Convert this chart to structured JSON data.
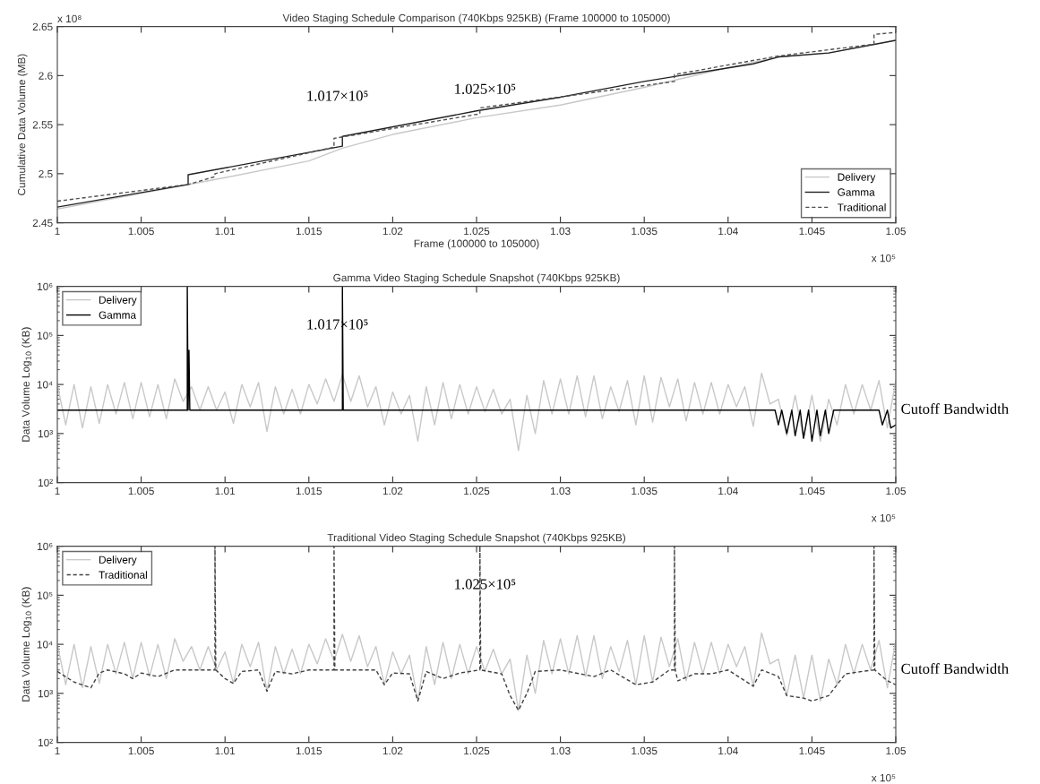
{
  "chart_data": [
    {
      "type": "line",
      "title": "Video Staging Schedule Comparison (740Kbps 925KB) (Frame 100000 to 105000)",
      "xlabel": "Frame (100000 to 105000)",
      "ylabel": "Cumulative Data Volume (MB)",
      "xlim": [
        1,
        1.05
      ],
      "xticks": [
        1,
        1.005,
        1.01,
        1.015,
        1.02,
        1.025,
        1.03,
        1.035,
        1.04,
        1.045,
        1.05
      ],
      "ylim": [
        2.45,
        2.65
      ],
      "yticks": [
        2.45,
        2.5,
        2.55,
        2.6,
        2.65
      ],
      "grid": false,
      "legend": "bottom right",
      "series": [
        {
          "name": "Delivery",
          "color": "#c8c8c8",
          "line_style": "solid",
          "x": [
            1,
            1.005,
            1.01,
            1.015,
            1.017,
            1.02,
            1.025,
            1.03,
            1.035,
            1.04,
            1.043,
            1.046,
            1.05
          ],
          "values": [
            2.464,
            2.48,
            2.496,
            2.513,
            2.526,
            2.54,
            2.557,
            2.57,
            2.588,
            2.608,
            2.619,
            2.623,
            2.636
          ]
        },
        {
          "name": "Gamma",
          "color": "#202020",
          "line_style": "solid",
          "x": [
            1,
            1.0078,
            1.0078,
            1.017,
            1.017,
            1.025,
            1.03,
            1.035,
            1.0415,
            1.043,
            1.046,
            1.05
          ],
          "values": [
            2.466,
            2.489,
            2.499,
            2.528,
            2.538,
            2.564,
            2.578,
            2.594,
            2.612,
            2.619,
            2.623,
            2.636
          ]
        },
        {
          "name": "Traditional",
          "color": "#505050",
          "line_style": "dashed",
          "x": [
            1,
            1.0078,
            1.0094,
            1.0094,
            1.0165,
            1.0165,
            1.0252,
            1.0252,
            1.0368,
            1.0368,
            1.043,
            1.0487,
            1.0487,
            1.05
          ],
          "values": [
            2.472,
            2.489,
            2.497,
            2.5,
            2.527,
            2.536,
            2.561,
            2.567,
            2.594,
            2.601,
            2.62,
            2.632,
            2.642,
            2.644
          ]
        }
      ],
      "annotations": [
        "x 10⁵",
        "x 10⁸",
        "1.017×10⁵",
        "1.025×10⁵"
      ]
    },
    {
      "type": "line",
      "title": "Gamma Video Staging Schedule Snapshot (740Kbps 925KB)",
      "ylabel": "Data Volume Log$_{10}$ (KB)",
      "log": "y",
      "xlim": [
        1,
        1.05
      ],
      "xticks": [
        1,
        1.005,
        1.01,
        1.015,
        1.02,
        1.025,
        1.03,
        1.035,
        1.04,
        1.045,
        1.05
      ],
      "ylim": [
        100,
        1000000
      ],
      "yticks": [
        {
          "value": 100,
          "label": "10²"
        },
        {
          "value": 1000,
          "label": "10³"
        },
        {
          "value": 10000,
          "label": "10⁴"
        },
        {
          "value": 100000,
          "label": "10⁵"
        },
        {
          "value": 1000000,
          "label": "10⁶"
        }
      ],
      "grid": false,
      "legend": "top left",
      "series": [
        {
          "name": "Delivery",
          "color": "#c8c8c8",
          "line_style": "solid",
          "x": [
            1.0,
            1.0005,
            1.001,
            1.0015,
            1.002,
            1.0025,
            1.003,
            1.0035,
            1.004,
            1.0045,
            1.005,
            1.0055,
            1.006,
            1.0065,
            1.007,
            1.0075,
            1.008,
            1.0085,
            1.009,
            1.0095,
            1.01,
            1.0105,
            1.011,
            1.0115,
            1.012,
            1.0125,
            1.013,
            1.0135,
            1.014,
            1.0145,
            1.015,
            1.0155,
            1.016,
            1.0165,
            1.017,
            1.0175,
            1.018,
            1.0185,
            1.019,
            1.0195,
            1.02,
            1.0205,
            1.021,
            1.0215,
            1.022,
            1.0225,
            1.023,
            1.0235,
            1.024,
            1.0245,
            1.025,
            1.0255,
            1.026,
            1.0265,
            1.027,
            1.0275,
            1.028,
            1.0285,
            1.029,
            1.0295,
            1.03,
            1.0305,
            1.031,
            1.0315,
            1.032,
            1.0325,
            1.033,
            1.0335,
            1.034,
            1.0345,
            1.035,
            1.0355,
            1.036,
            1.0365,
            1.037,
            1.0375,
            1.038,
            1.0385,
            1.039,
            1.0395,
            1.04,
            1.0405,
            1.041,
            1.0415,
            1.042,
            1.0425,
            1.043,
            1.0435,
            1.044,
            1.0445,
            1.045,
            1.0455,
            1.046,
            1.0465,
            1.047,
            1.0475,
            1.048,
            1.0485,
            1.049,
            1.0495,
            1.05
          ],
          "values": [
            10000,
            1500,
            10000,
            1300,
            9000,
            1600,
            10000,
            2500,
            11000,
            2000,
            11000,
            2200,
            10000,
            2000,
            13000,
            4500,
            9000,
            3000,
            9000,
            3000,
            7000,
            1600,
            10000,
            3500,
            11000,
            1100,
            9000,
            2500,
            8000,
            2500,
            10000,
            4000,
            13000,
            4500,
            16000,
            4500,
            15000,
            3500,
            9000,
            1500,
            7000,
            2500,
            6000,
            700,
            9000,
            1500,
            11000,
            2000,
            10000,
            2500,
            9000,
            2800,
            8000,
            2500,
            5000,
            450,
            6000,
            1000,
            12000,
            2500,
            13000,
            2500,
            15000,
            2200,
            15000,
            2000,
            9000,
            2800,
            12000,
            1500,
            15000,
            1700,
            14000,
            3500,
            13000,
            1800,
            11000,
            2500,
            11000,
            2500,
            10000,
            3500,
            9000,
            1400,
            17000,
            4000,
            5000,
            900,
            6000,
            800,
            6000,
            700,
            5000,
            1500,
            10000,
            2500,
            10000,
            3000,
            12000,
            1300,
            12000
          ]
        },
        {
          "name": "Gamma",
          "color": "#000000",
          "line_style": "solid",
          "x": [
            1.0,
            1.00775,
            1.00775,
            1.0078,
            1.00785,
            1.0079,
            1.017,
            1.017,
            1.01705,
            1.0428,
            1.043,
            1.0432,
            1.0435,
            1.0438,
            1.044,
            1.0443,
            1.0445,
            1.0448,
            1.045,
            1.0453,
            1.0455,
            1.0458,
            1.046,
            1.0463,
            1.0465,
            1.049,
            1.0492,
            1.0495,
            1.0497,
            1.05
          ],
          "values": [
            3000,
            3000,
            1000000,
            3000,
            50000,
            3000,
            3000,
            1000000,
            3000,
            3000,
            1500,
            3000,
            1000,
            3000,
            900,
            3000,
            800,
            3000,
            700,
            3000,
            900,
            3000,
            1000,
            3000,
            3000,
            3000,
            1500,
            3000,
            1300,
            1500
          ]
        }
      ],
      "annotations": [
        "x 10⁵",
        "1.017×10⁵",
        "Cutoff Bandwidth"
      ]
    },
    {
      "type": "line",
      "title": "Traditional Video Staging Schedule Snapshot (740Kbps 925KB)",
      "ylabel": "Data Volume Log$_{10}$ (KB)",
      "log": "y",
      "xlim": [
        1,
        1.05
      ],
      "xticks": [
        1,
        1.005,
        1.01,
        1.015,
        1.02,
        1.025,
        1.03,
        1.035,
        1.04,
        1.045,
        1.05
      ],
      "ylim": [
        100,
        1000000
      ],
      "yticks": [
        {
          "value": 100,
          "label": "10²"
        },
        {
          "value": 1000,
          "label": "10³"
        },
        {
          "value": 10000,
          "label": "10⁴"
        },
        {
          "value": 100000,
          "label": "10⁵"
        },
        {
          "value": 1000000,
          "label": "10⁶"
        }
      ],
      "grid": false,
      "legend": "top left",
      "series": [
        {
          "name": "Delivery",
          "color": "#c8c8c8",
          "line_style": "solid",
          "x": [
            1.0,
            1.0005,
            1.001,
            1.0015,
            1.002,
            1.0025,
            1.003,
            1.0035,
            1.004,
            1.0045,
            1.005,
            1.0055,
            1.006,
            1.0065,
            1.007,
            1.0075,
            1.008,
            1.0085,
            1.009,
            1.0095,
            1.01,
            1.0105,
            1.011,
            1.0115,
            1.012,
            1.0125,
            1.013,
            1.0135,
            1.014,
            1.0145,
            1.015,
            1.0155,
            1.016,
            1.0165,
            1.017,
            1.0175,
            1.018,
            1.0185,
            1.019,
            1.0195,
            1.02,
            1.0205,
            1.021,
            1.0215,
            1.022,
            1.0225,
            1.023,
            1.0235,
            1.024,
            1.0245,
            1.025,
            1.0255,
            1.026,
            1.0265,
            1.027,
            1.0275,
            1.028,
            1.0285,
            1.029,
            1.0295,
            1.03,
            1.0305,
            1.031,
            1.0315,
            1.032,
            1.0325,
            1.033,
            1.0335,
            1.034,
            1.0345,
            1.035,
            1.0355,
            1.036,
            1.0365,
            1.037,
            1.0375,
            1.038,
            1.0385,
            1.039,
            1.0395,
            1.04,
            1.0405,
            1.041,
            1.0415,
            1.042,
            1.0425,
            1.043,
            1.0435,
            1.044,
            1.0445,
            1.045,
            1.0455,
            1.046,
            1.0465,
            1.047,
            1.0475,
            1.048,
            1.0485,
            1.049,
            1.0495,
            1.05
          ],
          "values": [
            10000,
            1500,
            10000,
            1300,
            9000,
            1600,
            10000,
            2500,
            11000,
            2000,
            11000,
            2200,
            10000,
            2000,
            13000,
            4500,
            9000,
            3000,
            9000,
            3000,
            7000,
            1600,
            10000,
            3500,
            11000,
            1100,
            9000,
            2500,
            8000,
            2500,
            10000,
            4000,
            13000,
            4500,
            16000,
            4500,
            15000,
            3500,
            9000,
            1500,
            7000,
            2500,
            6000,
            700,
            9000,
            1500,
            11000,
            2000,
            10000,
            2500,
            9000,
            2800,
            8000,
            2500,
            5000,
            450,
            6000,
            1000,
            12000,
            2500,
            13000,
            2500,
            15000,
            2200,
            15000,
            2000,
            9000,
            2800,
            12000,
            1500,
            15000,
            1700,
            14000,
            3500,
            13000,
            1800,
            11000,
            2500,
            11000,
            2500,
            10000,
            3500,
            9000,
            1400,
            17000,
            4000,
            5000,
            900,
            6000,
            800,
            6000,
            700,
            5000,
            1500,
            10000,
            2500,
            10000,
            3000,
            12000,
            1300,
            12000
          ]
        },
        {
          "name": "Traditional",
          "color": "#404040",
          "line_style": "dashed",
          "x": [
            1.0,
            1.001,
            1.002,
            1.0025,
            1.003,
            1.004,
            1.0045,
            1.005,
            1.006,
            1.007,
            1.009,
            1.0094,
            1.0094,
            1.00945,
            1.01,
            1.0105,
            1.011,
            1.012,
            1.0125,
            1.013,
            1.014,
            1.015,
            1.0165,
            1.0165,
            1.01655,
            1.019,
            1.0195,
            1.02,
            1.021,
            1.0215,
            1.022,
            1.023,
            1.024,
            1.0252,
            1.0252,
            1.02525,
            1.0265,
            1.027,
            1.0275,
            1.028,
            1.0285,
            1.03,
            1.032,
            1.033,
            1.0345,
            1.0355,
            1.0365,
            1.0368,
            1.0368,
            1.03685,
            1.037,
            1.038,
            1.039,
            1.04,
            1.0415,
            1.042,
            1.043,
            1.0435,
            1.0445,
            1.045,
            1.046,
            1.0465,
            1.047,
            1.048,
            1.0487,
            1.0487,
            1.04875,
            1.0495,
            1.05
          ],
          "values": [
            2800,
            1700,
            1300,
            2600,
            3000,
            2500,
            2000,
            2600,
            2200,
            3000,
            3000,
            3000,
            1000000,
            3000,
            2000,
            1600,
            2800,
            3000,
            1100,
            2800,
            2500,
            3000,
            3000,
            1000000,
            3000,
            3000,
            1500,
            2600,
            2500,
            700,
            2800,
            2000,
            2600,
            3000,
            1000000,
            3000,
            2500,
            900,
            450,
            1000,
            2800,
            3000,
            2200,
            3000,
            1500,
            1700,
            3000,
            3000,
            1000000,
            3000,
            1800,
            2500,
            2500,
            3000,
            1400,
            3000,
            2200,
            900,
            800,
            700,
            900,
            1500,
            2500,
            2800,
            3000,
            1000000,
            3000,
            1800,
            1500
          ]
        }
      ],
      "annotations": [
        "x 10⁵",
        "1.025×10⁵",
        "Cutoff Bandwidth"
      ]
    }
  ]
}
